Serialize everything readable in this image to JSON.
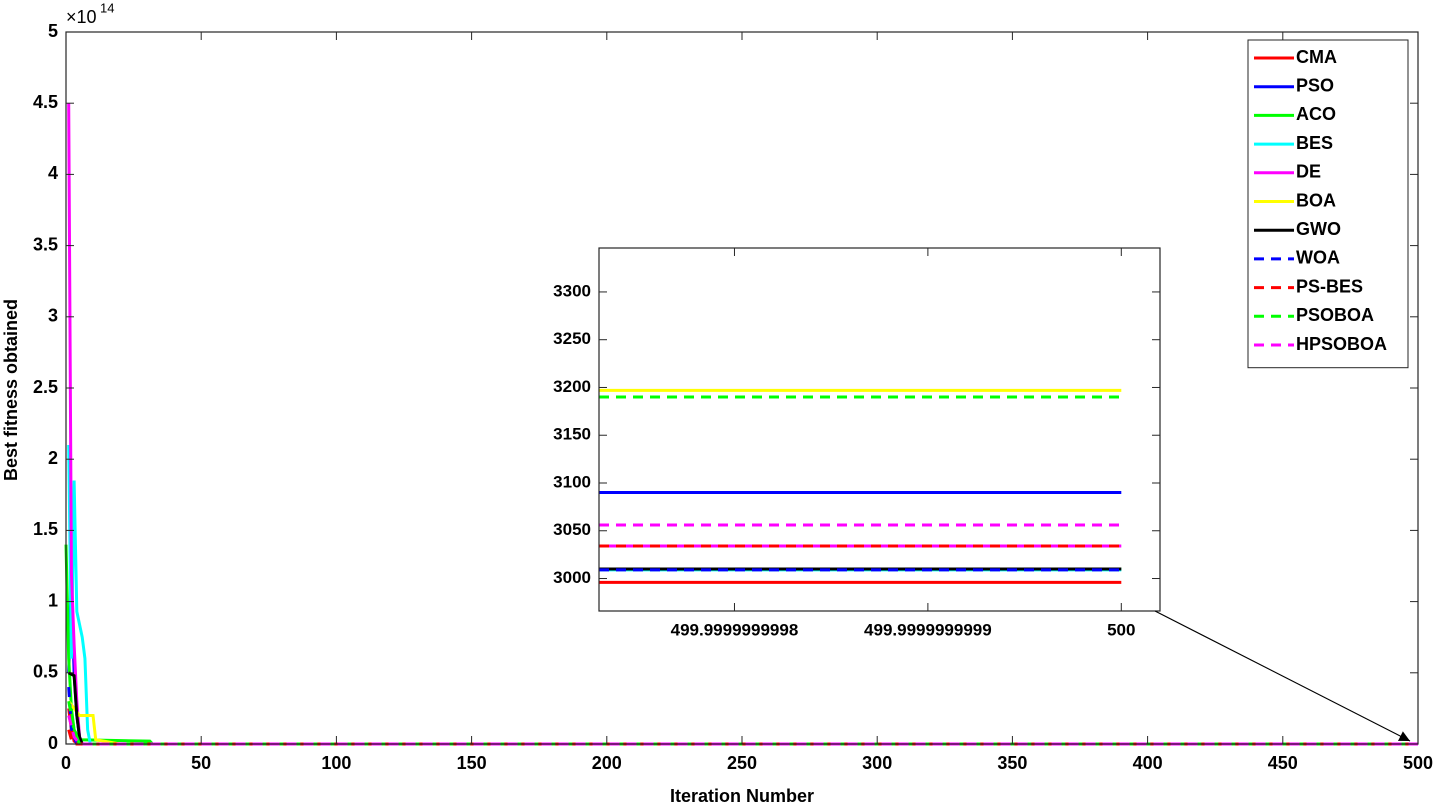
{
  "chart_data": [
    {
      "type": "line",
      "x_label": "Iteration Number",
      "y_label": "Best fitness obtained",
      "y_multiplier": {
        "base": "×10",
        "exponent": "14"
      },
      "xlim": [
        0,
        500
      ],
      "ylim": [
        0,
        5
      ],
      "xticks": [
        0,
        50,
        100,
        150,
        200,
        250,
        300,
        350,
        400,
        450,
        500
      ],
      "yticks": [
        0,
        0.5,
        1,
        1.5,
        2,
        2.5,
        3,
        3.5,
        4,
        4.5,
        5
      ],
      "grid": false,
      "legend": "northeast",
      "series": [
        {
          "name": "CMA",
          "color": "#ff0000",
          "dashed": false,
          "x": [
            1,
            2,
            3,
            5,
            500
          ],
          "values": [
            0.25,
            0.1,
            0.02,
            0,
            0
          ]
        },
        {
          "name": "PSO",
          "color": "#0000ff",
          "dashed": false,
          "x": [
            1,
            2,
            3,
            4,
            5,
            6,
            500
          ],
          "values": [
            0.5,
            1.2,
            0.5,
            0.2,
            0.05,
            0,
            0
          ]
        },
        {
          "name": "ACO",
          "color": "#00ff00",
          "dashed": false,
          "x": [
            0,
            1,
            2,
            3,
            5,
            31,
            32,
            500
          ],
          "values": [
            1.4,
            0.6,
            0.25,
            0.1,
            0.03,
            0.02,
            0,
            0
          ]
        },
        {
          "name": "BES",
          "color": "#00ffff",
          "dashed": false,
          "x": [
            1,
            2,
            3,
            4,
            6,
            7,
            8,
            9,
            500
          ],
          "values": [
            2.1,
            0.6,
            1.85,
            0.93,
            0.75,
            0.6,
            0.1,
            0,
            0
          ]
        },
        {
          "name": "DE",
          "color": "#ff00ff",
          "dashed": false,
          "x": [
            1,
            2,
            3,
            4,
            5,
            6,
            500
          ],
          "values": [
            4.5,
            1.2,
            0.7,
            0.3,
            0.05,
            0,
            0
          ]
        },
        {
          "name": "BOA",
          "color": "#ffff00",
          "dashed": false,
          "x": [
            1,
            5,
            10,
            11,
            20,
            500
          ],
          "values": [
            0.3,
            0.2,
            0.2,
            0.03,
            0,
            0
          ]
        },
        {
          "name": "GWO",
          "color": "#000000",
          "dashed": false,
          "x": [
            1,
            3,
            4,
            5,
            6,
            500
          ],
          "values": [
            0.5,
            0.48,
            0.2,
            0.05,
            0,
            0
          ]
        },
        {
          "name": "WOA",
          "color": "#0000ff",
          "dashed": true,
          "x": [
            1,
            2,
            4,
            500
          ],
          "values": [
            0.4,
            0.1,
            0,
            0
          ]
        },
        {
          "name": "PS-BES",
          "color": "#ff0000",
          "dashed": true,
          "x": [
            1,
            2,
            3,
            500
          ],
          "values": [
            0.1,
            0.03,
            0,
            0
          ]
        },
        {
          "name": "PSOBOA",
          "color": "#00ff00",
          "dashed": true,
          "x": [
            1,
            3,
            5,
            500
          ],
          "values": [
            0.3,
            0.1,
            0,
            0
          ]
        },
        {
          "name": "HPSOBOA",
          "color": "#ff00ff",
          "dashed": true,
          "x": [
            1,
            3,
            5,
            500
          ],
          "values": [
            0.2,
            0.05,
            0,
            0
          ]
        }
      ]
    },
    {
      "type": "line",
      "xlim": [
        499.99999999973,
        500.00000000002
      ],
      "ylim": [
        2966,
        3346
      ],
      "xticks": [
        {
          "value": 499.9999999998,
          "label": "499.9999999998"
        },
        {
          "value": 499.9999999999,
          "label": "499.9999999999"
        },
        500
      ],
      "yticks": [
        3000,
        3050,
        3100,
        3150,
        3200,
        3250,
        3300
      ],
      "grid": false,
      "series": [
        {
          "color": "#ff0000",
          "dashed": false,
          "x": [
            499.99999999973,
            500
          ],
          "values": [
            2996,
            2996
          ]
        },
        {
          "color": "#0000ff",
          "dashed": false,
          "x": [
            499.99999999973,
            500
          ],
          "values": [
            3090,
            3090
          ]
        },
        {
          "color": "#00ff00",
          "dashed": false,
          "x": [
            499.99999999973,
            500
          ],
          "values": [
            3010,
            3010
          ]
        },
        {
          "color": "#00ffff",
          "dashed": false,
          "x": [
            499.99999999973,
            500
          ],
          "values": [
            3009,
            3009
          ]
        },
        {
          "color": "#ff00ff",
          "dashed": false,
          "x": [
            499.99999999973,
            500
          ],
          "values": [
            3034,
            3034
          ]
        },
        {
          "color": "#ffff00",
          "dashed": false,
          "x": [
            499.99999999973,
            500
          ],
          "values": [
            3197,
            3197
          ]
        },
        {
          "color": "#000000",
          "dashed": false,
          "x": [
            499.99999999973,
            500
          ],
          "values": [
            3010,
            3010
          ]
        },
        {
          "color": "#0000ff",
          "dashed": true,
          "x": [
            499.99999999973,
            500
          ],
          "values": [
            3009,
            3009
          ]
        },
        {
          "color": "#ff0000",
          "dashed": true,
          "x": [
            499.99999999973,
            500
          ],
          "values": [
            3034,
            3034
          ]
        },
        {
          "color": "#00ff00",
          "dashed": true,
          "x": [
            499.99999999973,
            500
          ],
          "values": [
            3190,
            3190
          ]
        },
        {
          "color": "#ff00ff",
          "dashed": true,
          "x": [
            499.99999999973,
            500
          ],
          "values": [
            3056,
            3056
          ]
        }
      ]
    }
  ]
}
